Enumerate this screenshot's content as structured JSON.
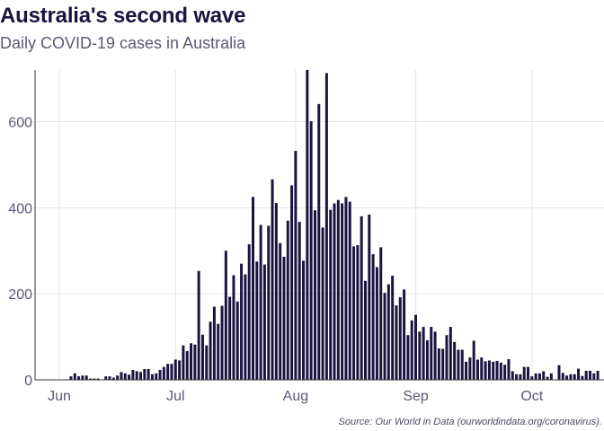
{
  "header": {
    "title": "Australia's second wave",
    "subtitle": "Daily COVID-19 cases in Australia"
  },
  "caption": "Source: Our World in Data (ourworldindata.org/coronavirus).",
  "colors": {
    "bar": "#1b1440",
    "grid": "#e3e3e3",
    "axis": "#333333",
    "text": "#5b5777"
  },
  "chart_data": {
    "type": "bar",
    "title": "Australia's second wave",
    "subtitle": "Daily COVID-19 cases in Australia",
    "xlabel": "",
    "ylabel": "",
    "x_start": "2020-06-01",
    "x_ticks": [
      {
        "date": "2020-06-01",
        "label": "Jun"
      },
      {
        "date": "2020-07-01",
        "label": "Jul"
      },
      {
        "date": "2020-08-01",
        "label": "Aug"
      },
      {
        "date": "2020-09-01",
        "label": "Sep"
      },
      {
        "date": "2020-10-01",
        "label": "Oct"
      }
    ],
    "y_ticks": [
      0,
      200,
      400,
      600
    ],
    "ylim": [
      0,
      720
    ],
    "grid": true,
    "values": [
      8,
      15,
      8,
      10,
      10,
      3,
      3,
      3,
      0,
      8,
      8,
      5,
      10,
      18,
      15,
      12,
      23,
      20,
      18,
      25,
      25,
      13,
      15,
      23,
      30,
      37,
      37,
      47,
      45,
      80,
      67,
      85,
      82,
      253,
      105,
      80,
      135,
      170,
      130,
      172,
      300,
      193,
      243,
      182,
      270,
      245,
      315,
      425,
      275,
      360,
      268,
      358,
      466,
      411,
      318,
      286,
      370,
      452,
      532,
      367,
      277,
      728,
      601,
      394,
      641,
      354,
      713,
      395,
      410,
      418,
      410,
      425,
      414,
      310,
      313,
      380,
      230,
      384,
      292,
      262,
      308,
      202,
      222,
      242,
      173,
      192,
      210,
      104,
      138,
      151,
      112,
      123,
      92,
      123,
      112,
      73,
      72,
      104,
      123,
      88,
      70,
      70,
      42,
      52,
      91,
      47,
      52,
      43,
      45,
      42,
      44,
      40,
      35,
      48,
      20,
      13,
      13,
      30,
      30,
      8,
      15,
      15,
      20,
      7,
      15,
      1,
      34,
      16,
      10,
      13,
      13,
      26,
      9,
      21,
      21,
      15,
      21
    ]
  }
}
